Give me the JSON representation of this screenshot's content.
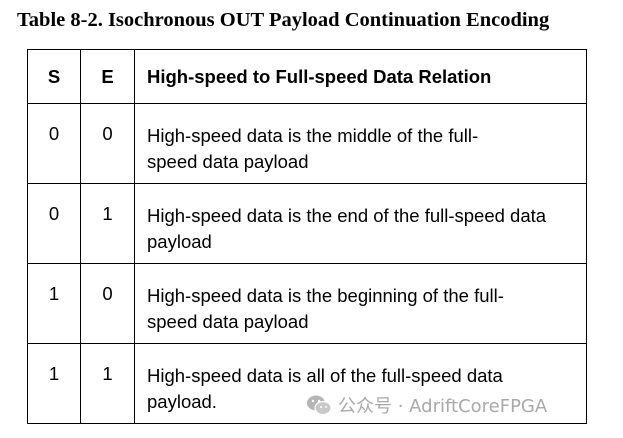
{
  "title": "Table 8-2.  Isochronous OUT Payload Continuation Encoding",
  "table": {
    "headers": [
      "S",
      "E",
      "High-speed to Full-speed Data Relation"
    ],
    "rows": [
      {
        "s": "0",
        "e": "0",
        "relation": "High-speed data is the middle of the full-speed data payload"
      },
      {
        "s": "0",
        "e": "1",
        "relation": "High-speed data is the end of the full-speed data payload"
      },
      {
        "s": "1",
        "e": "0",
        "relation": "High-speed data is the beginning of the full-speed data payload"
      },
      {
        "s": "1",
        "e": "1",
        "relation": "High-speed data is all of the full-speed data payload."
      }
    ]
  },
  "watermark": {
    "icon": "wechat-icon",
    "text": "公众号 · AdriftCoreFPGA"
  }
}
